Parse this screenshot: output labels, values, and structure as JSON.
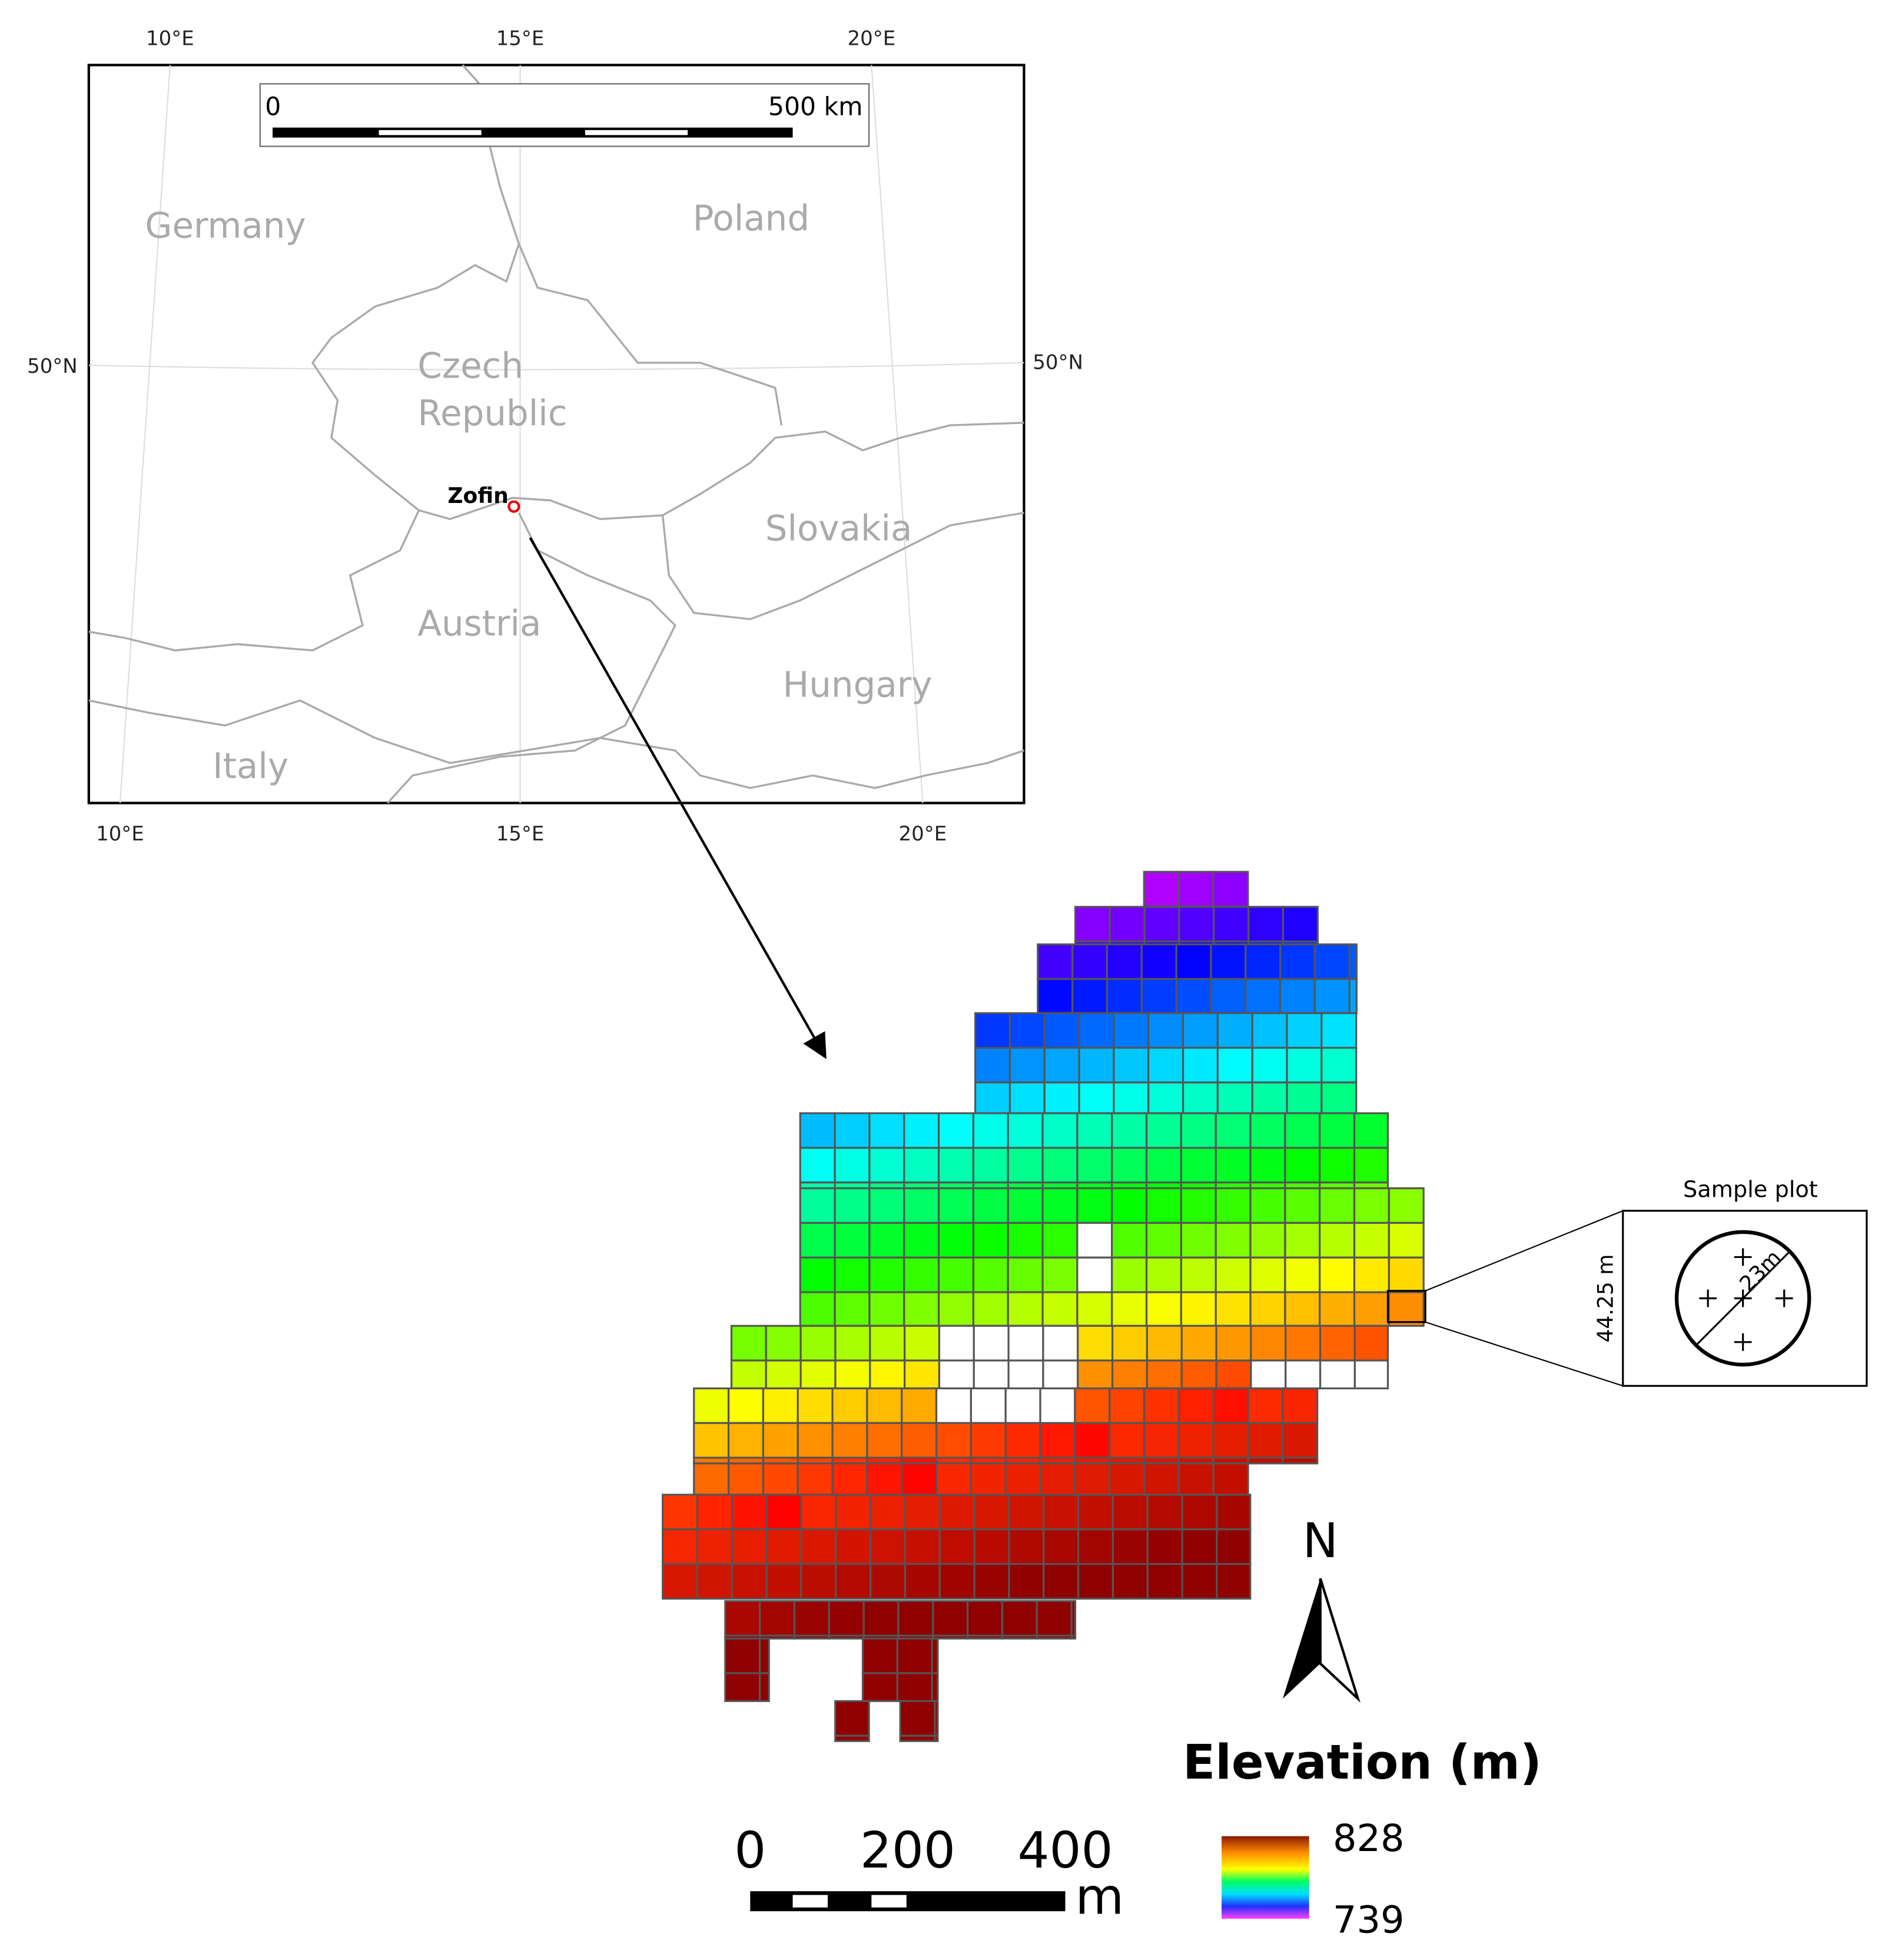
{
  "inset_map": {
    "lon_labels_top": [
      "10°E",
      "15°E",
      "20°E"
    ],
    "lon_labels_bottom": [
      "10°E",
      "15°E",
      "20°E"
    ],
    "lat_label_left": "50°N",
    "lat_label_right": "50°N",
    "scale_bar": {
      "start": "0",
      "end": "500 km"
    },
    "countries": [
      "Germany",
      "Poland",
      "Czech",
      "Republic",
      "Slovakia",
      "Austria",
      "Hungary",
      "Italy"
    ],
    "site": "Zofin"
  },
  "sample_plot": {
    "title": "Sample plot",
    "side": "44.25 m",
    "radius": "23m"
  },
  "north_arrow": "N",
  "legend": {
    "title": "Elevation (m)",
    "max": "828",
    "min": "739"
  },
  "scale_bar": {
    "labels": [
      "0",
      "200",
      "400"
    ],
    "unit": "m"
  }
}
